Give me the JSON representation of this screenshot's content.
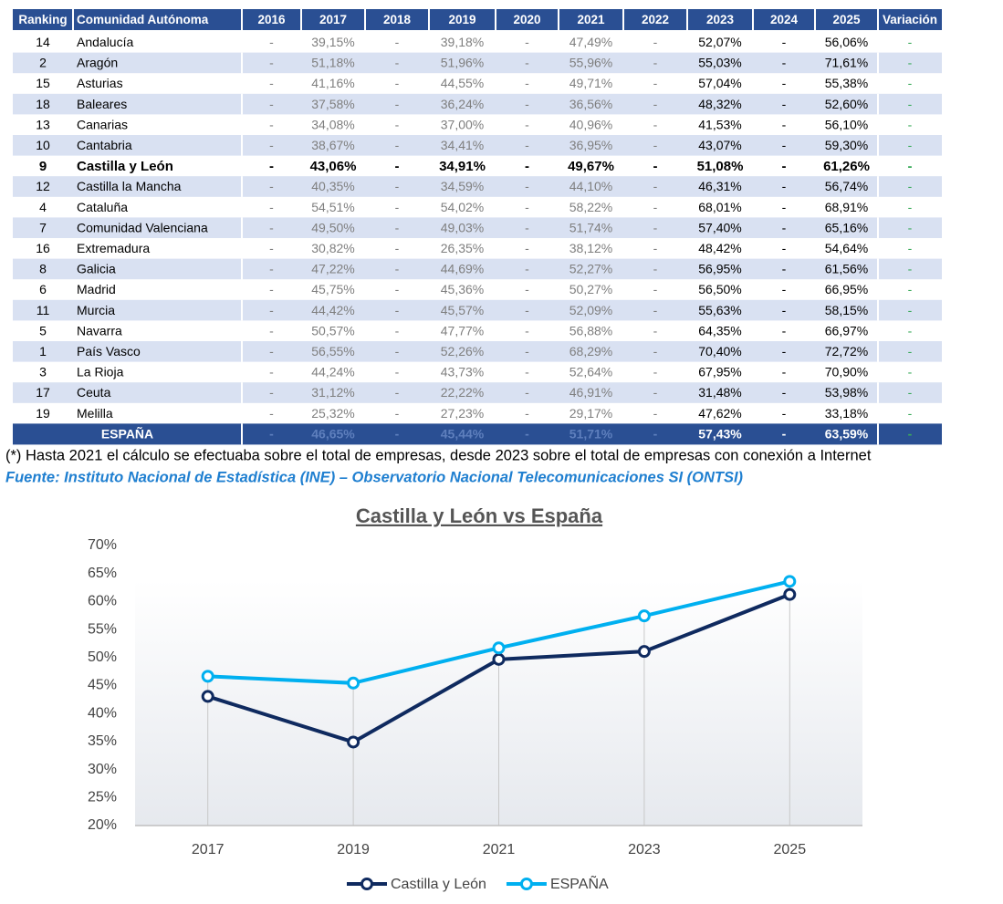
{
  "table": {
    "header": [
      "Ranking",
      "Comunidad Autónoma",
      "2016",
      "2017",
      "2018",
      "2019",
      "2020",
      "2021",
      "2022",
      "2023",
      "2024",
      "2025",
      "Variación"
    ],
    "rows": [
      [
        "14",
        "Andalucía",
        "-",
        "39,15%",
        "-",
        "39,18%",
        "-",
        "47,49%",
        "-",
        "52,07%",
        "-",
        "56,06%",
        "-"
      ],
      [
        "2",
        "Aragón",
        "-",
        "51,18%",
        "-",
        "51,96%",
        "-",
        "55,96%",
        "-",
        "55,03%",
        "-",
        "71,61%",
        "-"
      ],
      [
        "15",
        "Asturias",
        "-",
        "41,16%",
        "-",
        "44,55%",
        "-",
        "49,71%",
        "-",
        "57,04%",
        "-",
        "55,38%",
        "-"
      ],
      [
        "18",
        "Baleares",
        "-",
        "37,58%",
        "-",
        "36,24%",
        "-",
        "36,56%",
        "-",
        "48,32%",
        "-",
        "52,60%",
        "-"
      ],
      [
        "13",
        "Canarias",
        "-",
        "34,08%",
        "-",
        "37,00%",
        "-",
        "40,96%",
        "-",
        "41,53%",
        "-",
        "56,10%",
        "-"
      ],
      [
        "10",
        "Cantabria",
        "-",
        "38,67%",
        "-",
        "34,41%",
        "-",
        "36,95%",
        "-",
        "43,07%",
        "-",
        "59,30%",
        "-"
      ],
      [
        "9",
        "Castilla y León",
        "-",
        "43,06%",
        "-",
        "34,91%",
        "-",
        "49,67%",
        "-",
        "51,08%",
        "-",
        "61,26%",
        "-"
      ],
      [
        "12",
        "Castilla la Mancha",
        "-",
        "40,35%",
        "-",
        "34,59%",
        "-",
        "44,10%",
        "-",
        "46,31%",
        "-",
        "56,74%",
        "-"
      ],
      [
        "4",
        "Cataluña",
        "-",
        "54,51%",
        "-",
        "54,02%",
        "-",
        "58,22%",
        "-",
        "68,01%",
        "-",
        "68,91%",
        "-"
      ],
      [
        "7",
        "Comunidad Valenciana",
        "-",
        "49,50%",
        "-",
        "49,03%",
        "-",
        "51,74%",
        "-",
        "57,40%",
        "-",
        "65,16%",
        "-"
      ],
      [
        "16",
        "Extremadura",
        "-",
        "30,82%",
        "-",
        "26,35%",
        "-",
        "38,12%",
        "-",
        "48,42%",
        "-",
        "54,64%",
        "-"
      ],
      [
        "8",
        "Galicia",
        "-",
        "47,22%",
        "-",
        "44,69%",
        "-",
        "52,27%",
        "-",
        "56,95%",
        "-",
        "61,56%",
        "-"
      ],
      [
        "6",
        "Madrid",
        "-",
        "45,75%",
        "-",
        "45,36%",
        "-",
        "50,27%",
        "-",
        "56,50%",
        "-",
        "66,95%",
        "-"
      ],
      [
        "11",
        "Murcia",
        "-",
        "44,42%",
        "-",
        "45,57%",
        "-",
        "52,09%",
        "-",
        "55,63%",
        "-",
        "58,15%",
        "-"
      ],
      [
        "5",
        "Navarra",
        "-",
        "50,57%",
        "-",
        "47,77%",
        "-",
        "56,88%",
        "-",
        "64,35%",
        "-",
        "66,97%",
        "-"
      ],
      [
        "1",
        "País Vasco",
        "-",
        "56,55%",
        "-",
        "52,26%",
        "-",
        "68,29%",
        "-",
        "70,40%",
        "-",
        "72,72%",
        "-"
      ],
      [
        "3",
        "La Rioja",
        "-",
        "44,24%",
        "-",
        "43,73%",
        "-",
        "52,64%",
        "-",
        "67,95%",
        "-",
        "70,90%",
        "-"
      ],
      [
        "17",
        "Ceuta",
        "-",
        "31,12%",
        "-",
        "22,22%",
        "-",
        "46,91%",
        "-",
        "31,48%",
        "-",
        "53,98%",
        "-"
      ],
      [
        "19",
        "Melilla",
        "-",
        "25,32%",
        "-",
        "27,23%",
        "-",
        "29,17%",
        "-",
        "47,62%",
        "-",
        "33,18%",
        "-"
      ]
    ],
    "total_row": [
      "ESPAÑA",
      "-",
      "46,65%",
      "-",
      "45,44%",
      "-",
      "51,71%",
      "-",
      "57,43%",
      "-",
      "63,59%",
      "-"
    ]
  },
  "note": "(*) Hasta 2021 el cálculo se efectuaba sobre el total de empresas, desde 2023 sobre el total de empresas con conexión a Internet",
  "source": "Fuente: Instituto Nacional de Estadística (INE) – Observatorio Nacional Telecomunicaciones SI (ONTSI)",
  "chart_data": {
    "type": "line",
    "title": "Castilla y León vs España",
    "categories": [
      "2017",
      "2019",
      "2021",
      "2023",
      "2025"
    ],
    "series": [
      {
        "name": "Castilla y León",
        "color": "#0f2a5f",
        "values": [
          43.06,
          34.91,
          49.67,
          51.08,
          61.26
        ]
      },
      {
        "name": "ESPAÑA",
        "color": "#00b0f0",
        "values": [
          46.65,
          45.44,
          51.71,
          57.43,
          63.59
        ]
      }
    ],
    "ylim": [
      20,
      70
    ],
    "yticks": [
      {
        "value": 20,
        "label": "20%"
      },
      {
        "value": 25,
        "label": "25%"
      },
      {
        "value": 30,
        "label": "30%"
      },
      {
        "value": 35,
        "label": "35%"
      },
      {
        "value": 40,
        "label": "40%"
      },
      {
        "value": 45,
        "label": "45%"
      },
      {
        "value": 50,
        "label": "50%"
      },
      {
        "value": 55,
        "label": "55%"
      },
      {
        "value": 60,
        "label": "60%"
      },
      {
        "value": 65,
        "label": "65%"
      },
      {
        "value": 70,
        "label": "70%"
      }
    ],
    "grid": false,
    "legend": "bottom"
  }
}
